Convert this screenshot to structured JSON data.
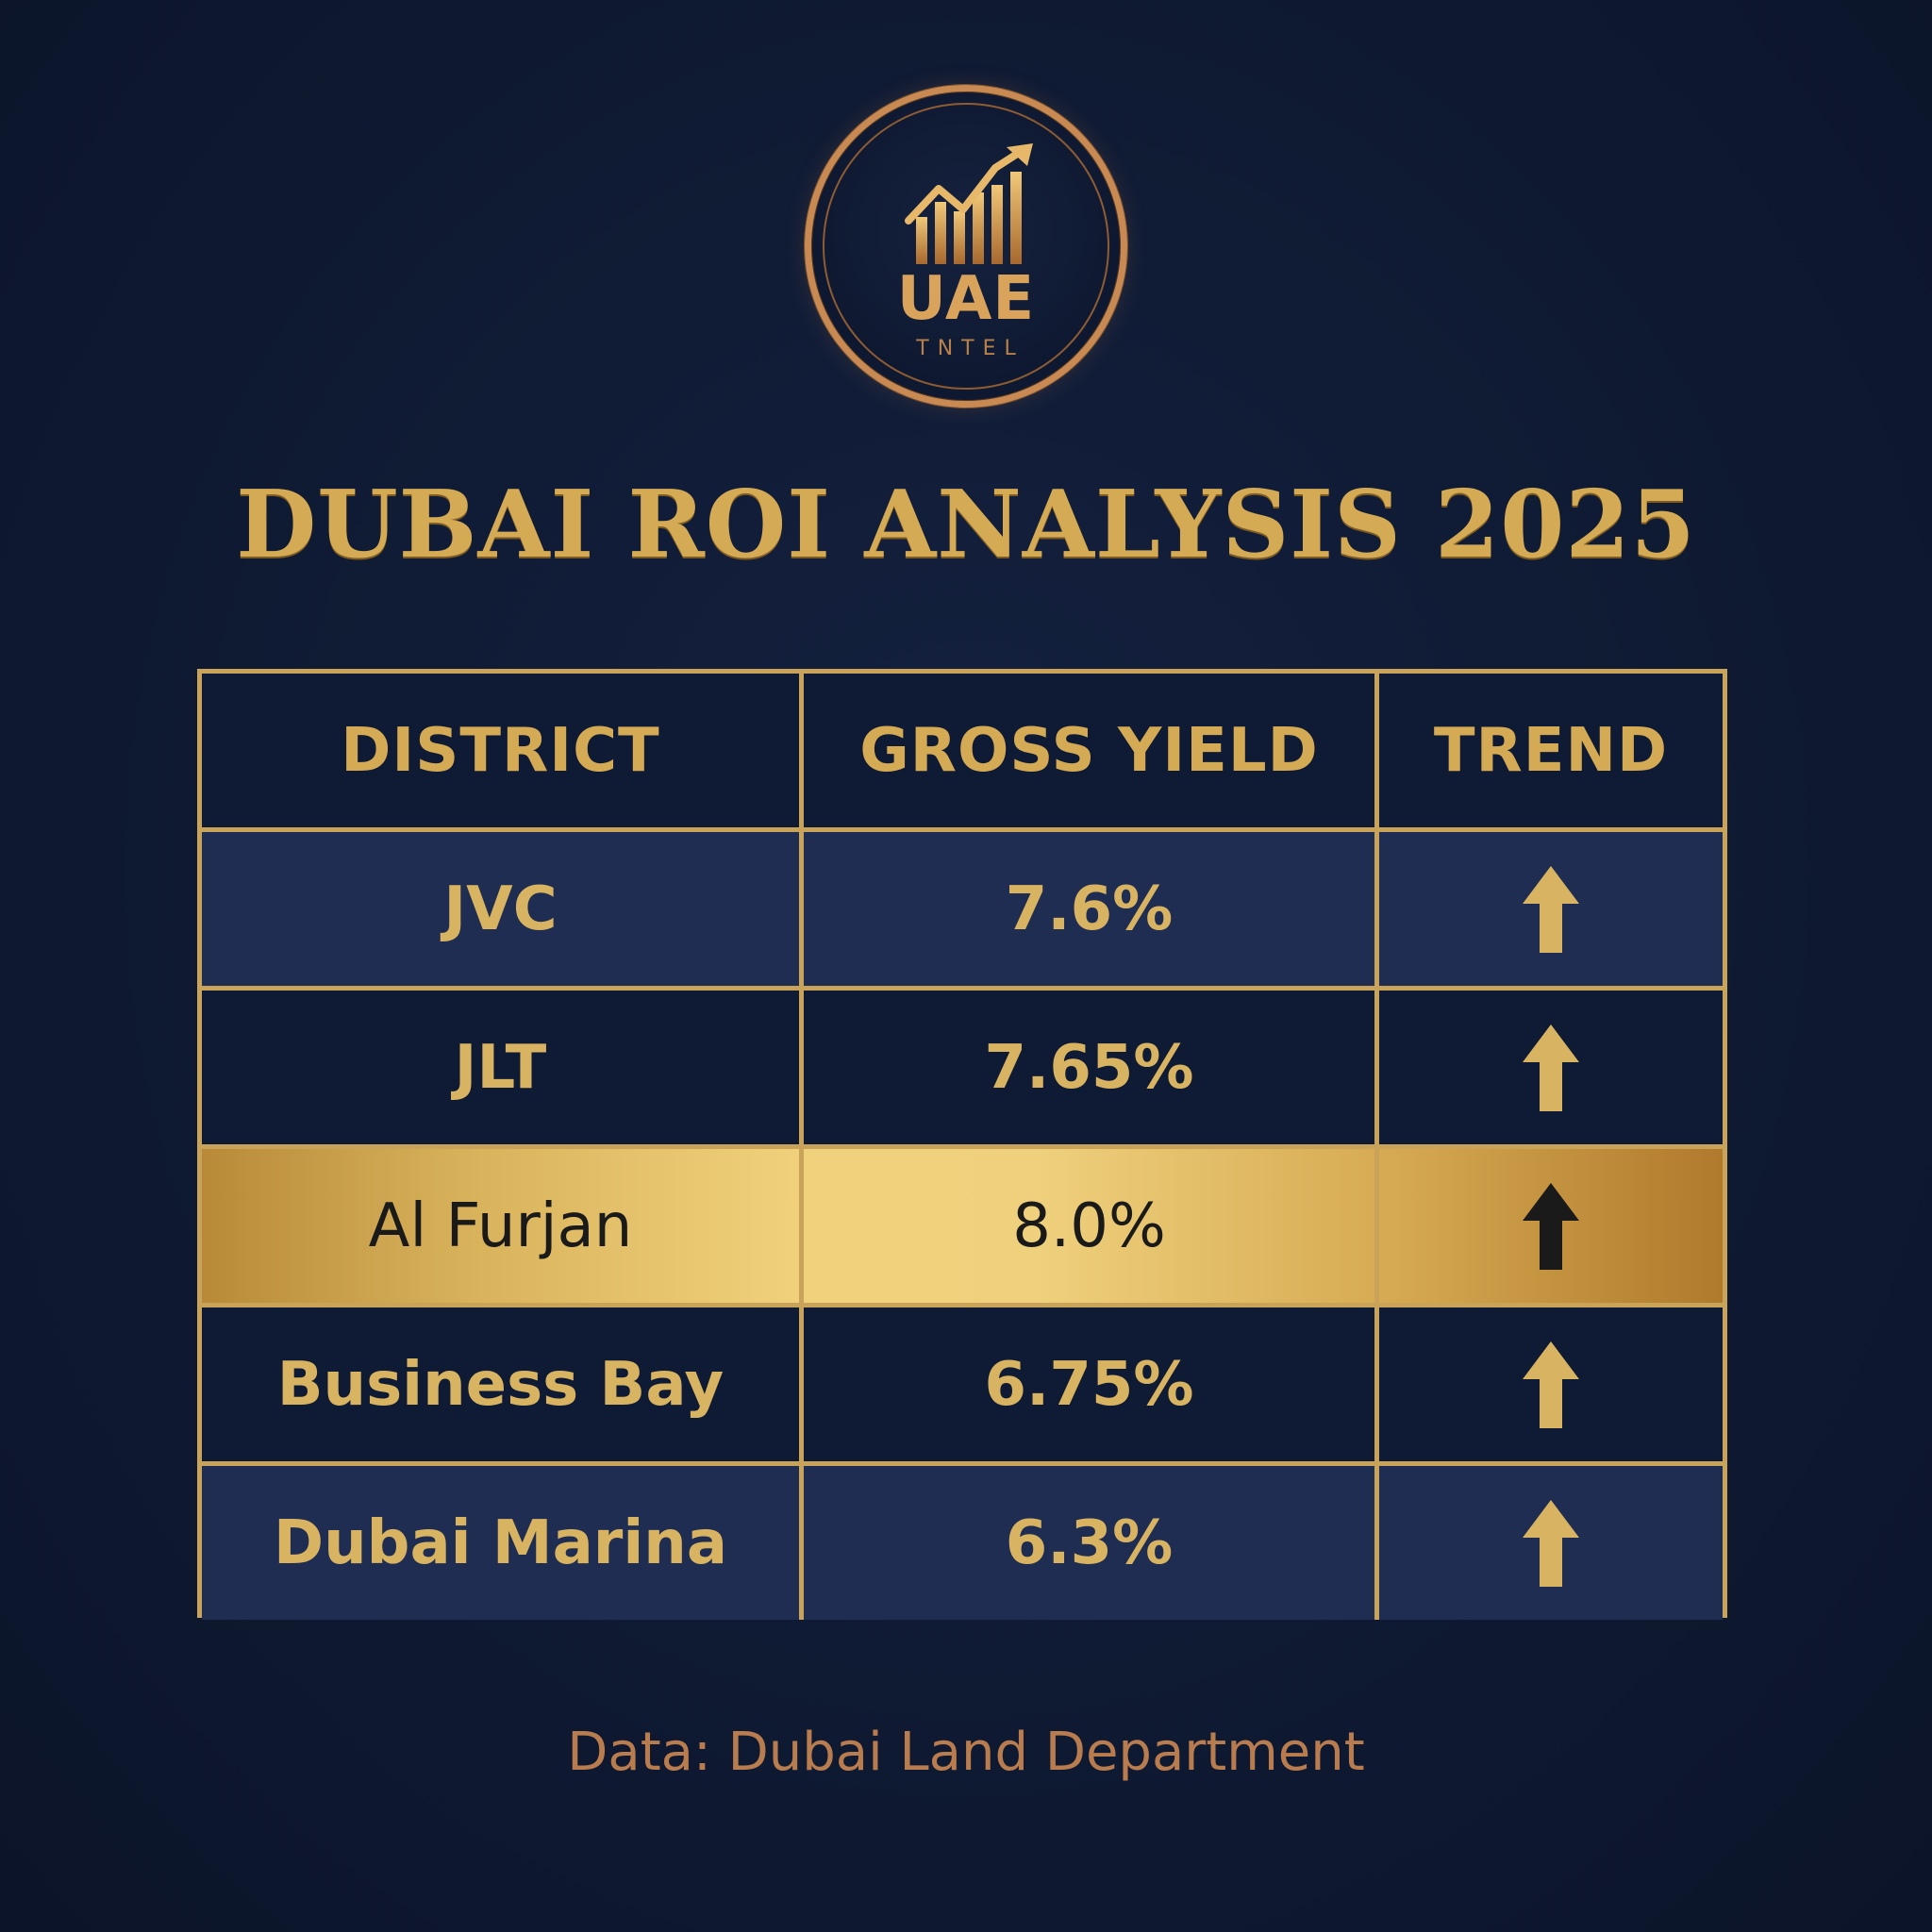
{
  "logo": {
    "main_text": "UAE",
    "sub_text": "TNTEL"
  },
  "title": "DUBAI ROI ANALYSIS 2025",
  "colors": {
    "background": "#0f1a33",
    "gold": "#d4aa55",
    "highlight_text": "#1a1a1a",
    "source_text": "#b97c4e"
  },
  "table": {
    "headers": [
      "DISTRICT",
      "GROSS YIELD",
      "TREND"
    ]
  },
  "chart_data": {
    "type": "table",
    "columns": [
      "DISTRICT",
      "GROSS YIELD",
      "TREND"
    ],
    "rows": [
      {
        "district": "JVC",
        "yield": "7.6%",
        "trend": "up"
      },
      {
        "district": "JLT",
        "yield": "7.65%",
        "trend": "up"
      },
      {
        "district": "Al Furjan",
        "yield": "8.0%",
        "trend": "up",
        "highlighted": true
      },
      {
        "district": "Business Bay",
        "yield": "6.75%",
        "trend": "up"
      },
      {
        "district": "Dubai Marina",
        "yield": "6.3%",
        "trend": "up"
      }
    ]
  },
  "icons": {
    "trend_up": "arrow-up-icon",
    "logo_emblem": "rising-chart-icon"
  },
  "source": "Data: Dubai Land Department"
}
